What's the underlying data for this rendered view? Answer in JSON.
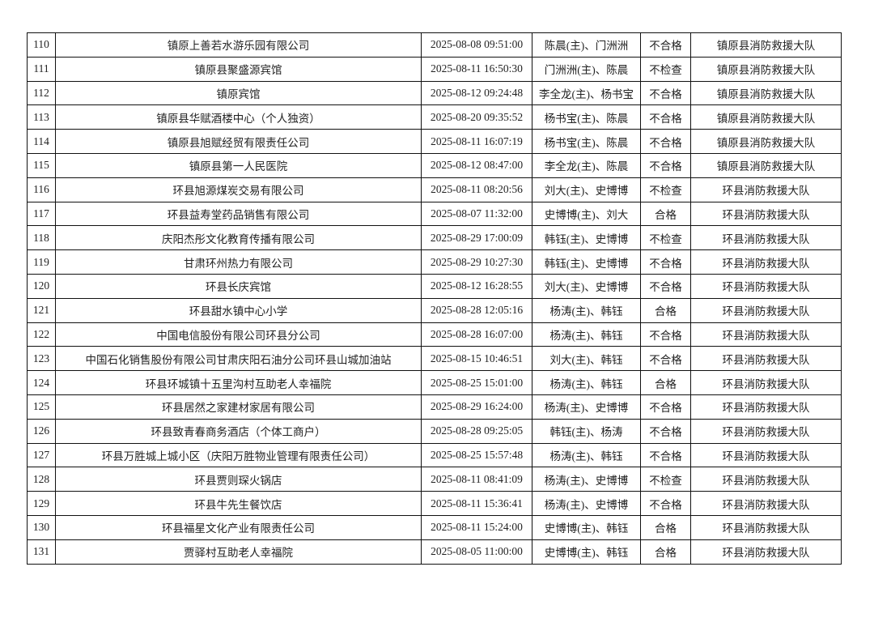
{
  "table": {
    "rows": [
      [
        "110",
        "镇原上善若水游乐园有限公司",
        "2025-08-08 09:51:00",
        "陈晨(主)、门洲洲",
        "不合格",
        "镇原县消防救援大队"
      ],
      [
        "111",
        "镇原县聚盛源宾馆",
        "2025-08-11 16:50:30",
        "门洲洲(主)、陈晨",
        "不检查",
        "镇原县消防救援大队"
      ],
      [
        "112",
        "镇原宾馆",
        "2025-08-12 09:24:48",
        "李全龙(主)、杨书宝",
        "不合格",
        "镇原县消防救援大队"
      ],
      [
        "113",
        "镇原县华赋酒楼中心（个人独资）",
        "2025-08-20 09:35:52",
        "杨书宝(主)、陈晨",
        "不合格",
        "镇原县消防救援大队"
      ],
      [
        "114",
        "镇原县旭赋经贸有限责任公司",
        "2025-08-11 16:07:19",
        "杨书宝(主)、陈晨",
        "不合格",
        "镇原县消防救援大队"
      ],
      [
        "115",
        "镇原县第一人民医院",
        "2025-08-12 08:47:00",
        "李全龙(主)、陈晨",
        "不合格",
        "镇原县消防救援大队"
      ],
      [
        "116",
        "环县旭源煤炭交易有限公司",
        "2025-08-11 08:20:56",
        "刘大(主)、史博博",
        "不检查",
        "环县消防救援大队"
      ],
      [
        "117",
        "环县益寿堂药品销售有限公司",
        "2025-08-07 11:32:00",
        "史博博(主)、刘大",
        "合格",
        "环县消防救援大队"
      ],
      [
        "118",
        "庆阳杰彤文化教育传播有限公司",
        "2025-08-29 17:00:09",
        "韩钰(主)、史博博",
        "不检查",
        "环县消防救援大队"
      ],
      [
        "119",
        "甘肃环州热力有限公司",
        "2025-08-29 10:27:30",
        "韩钰(主)、史博博",
        "不合格",
        "环县消防救援大队"
      ],
      [
        "120",
        "环县长庆宾馆",
        "2025-08-12 16:28:55",
        "刘大(主)、史博博",
        "不合格",
        "环县消防救援大队"
      ],
      [
        "121",
        "环县甜水镇中心小学",
        "2025-08-28 12:05:16",
        "杨涛(主)、韩钰",
        "合格",
        "环县消防救援大队"
      ],
      [
        "122",
        "中国电信股份有限公司环县分公司",
        "2025-08-28 16:07:00",
        "杨涛(主)、韩钰",
        "不合格",
        "环县消防救援大队"
      ],
      [
        "123",
        "中国石化销售股份有限公司甘肃庆阳石油分公司环县山城加油站",
        "2025-08-15 10:46:51",
        "刘大(主)、韩钰",
        "不合格",
        "环县消防救援大队"
      ],
      [
        "124",
        "环县环城镇十五里沟村互助老人幸福院",
        "2025-08-25 15:01:00",
        "杨涛(主)、韩钰",
        "合格",
        "环县消防救援大队"
      ],
      [
        "125",
        "环县居然之家建材家居有限公司",
        "2025-08-29 16:24:00",
        "杨涛(主)、史博博",
        "不合格",
        "环县消防救援大队"
      ],
      [
        "126",
        "环县致青春商务酒店（个体工商户）",
        "2025-08-28 09:25:05",
        "韩钰(主)、杨涛",
        "不合格",
        "环县消防救援大队"
      ],
      [
        "127",
        "环县万胜城上城小区（庆阳万胜物业管理有限责任公司）",
        "2025-08-25 15:57:48",
        "杨涛(主)、韩钰",
        "不合格",
        "环县消防救援大队"
      ],
      [
        "128",
        "环县贾则琛火锅店",
        "2025-08-11 08:41:09",
        "杨涛(主)、史博博",
        "不检查",
        "环县消防救援大队"
      ],
      [
        "129",
        "环县牛先生餐饮店",
        "2025-08-11 15:36:41",
        "杨涛(主)、史博博",
        "不合格",
        "环县消防救援大队"
      ],
      [
        "130",
        "环县福星文化产业有限责任公司",
        "2025-08-11 15:24:00",
        "史博博(主)、韩钰",
        "合格",
        "环县消防救援大队"
      ],
      [
        "131",
        "贾驿村互助老人幸福院",
        "2025-08-05 11:00:00",
        "史博博(主)、韩钰",
        "合格",
        "环县消防救援大队"
      ]
    ]
  }
}
